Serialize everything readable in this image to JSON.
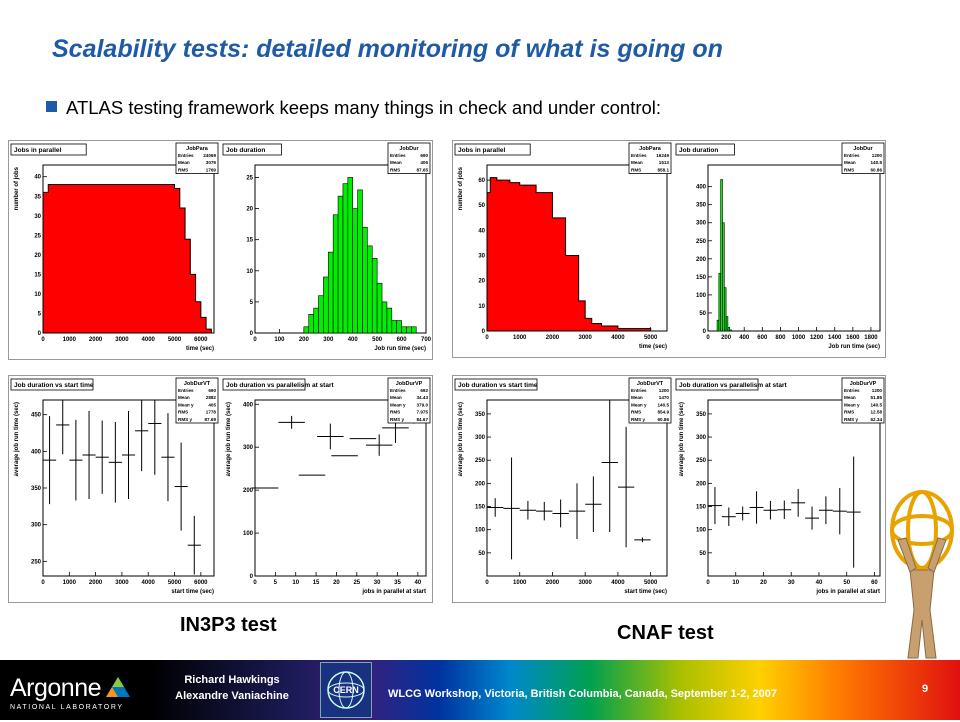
{
  "slide": {
    "title": "Scalability tests: detailed monitoring of what is going on",
    "bullet": "ATLAS testing framework keeps many things in check and under control:",
    "caption_left": "IN3P3 test",
    "caption_right": "CNAF test"
  },
  "footer": {
    "logo_text": "Argonne",
    "logo_sub": "NATIONAL LABORATORY",
    "author1": "Richard Hawkings",
    "author2": "Alexandre Vaniachine",
    "cern_text": "CERN",
    "workshop": "WLCG Workshop, Victoria, British Columbia, Canada, September 1-2, 2007",
    "page": "9"
  },
  "colors": {
    "title": "#1f5aa6",
    "red_fill": "#ff0000",
    "green_fill": "#00ee00"
  },
  "chart_data": [
    {
      "type": "area",
      "title": "Jobs in parallel",
      "stats_name": "JobPara",
      "stats": [
        [
          "Entries",
          "24069"
        ],
        [
          "Mean",
          "3079"
        ],
        [
          "RMS",
          "1769"
        ]
      ],
      "xlabel": "time (sec)",
      "ylabel": "number of jobs",
      "xlim": [
        0,
        6500
      ],
      "ylim": [
        0,
        43
      ],
      "xticks": [
        0,
        1000,
        2000,
        3000,
        4000,
        5000,
        6000
      ],
      "yticks": [
        0,
        5,
        10,
        15,
        20,
        25,
        30,
        35,
        40
      ],
      "x": [
        0,
        200,
        500,
        1000,
        2000,
        3000,
        4000,
        4500,
        5000,
        5200,
        5400,
        5600,
        5800,
        6000,
        6200,
        6400
      ],
      "y": [
        36,
        38,
        38,
        38,
        38,
        38,
        38,
        38,
        37,
        32,
        24,
        15,
        8,
        4,
        1,
        0
      ],
      "fill": "#ff0000"
    },
    {
      "type": "bar",
      "title": "Job duration",
      "stats_name": "JobDur",
      "stats": [
        [
          "Entries",
          "690"
        ],
        [
          "Mean",
          "406"
        ],
        [
          "RMS",
          "87.65"
        ]
      ],
      "xlabel": "Job run time (sec)",
      "ylabel": "",
      "xlim": [
        0,
        700
      ],
      "ylim": [
        0,
        27
      ],
      "xticks": [
        0,
        100,
        200,
        300,
        400,
        500,
        600,
        700
      ],
      "yticks": [
        0,
        5,
        10,
        15,
        20,
        25
      ],
      "x": [
        210,
        230,
        250,
        270,
        290,
        310,
        330,
        350,
        370,
        390,
        410,
        430,
        450,
        470,
        490,
        510,
        530,
        550,
        570,
        590,
        610,
        630,
        650
      ],
      "y": [
        1,
        3,
        4,
        6,
        9,
        13,
        19,
        22,
        24,
        25,
        20,
        23,
        17,
        14,
        12,
        8,
        5,
        4,
        2,
        2,
        1,
        1,
        1
      ],
      "fill": "#00ee00"
    },
    {
      "type": "area",
      "title": "Jobs in parallel",
      "stats_name": "JobPara",
      "stats": [
        [
          "Entries",
          "16249"
        ],
        [
          "Mean",
          "1513"
        ],
        [
          "RMS",
          "858.1"
        ]
      ],
      "xlabel": "time (sec)",
      "ylabel": "number of jobs",
      "xlim": [
        0,
        5500
      ],
      "ylim": [
        0,
        66
      ],
      "xticks": [
        0,
        1000,
        2000,
        3000,
        4000,
        5000
      ],
      "yticks": [
        0,
        10,
        20,
        30,
        40,
        50,
        60
      ],
      "x": [
        0,
        100,
        300,
        700,
        1000,
        1500,
        2000,
        2400,
        2800,
        3000,
        3200,
        3500,
        4000,
        4500,
        5000
      ],
      "y": [
        55,
        61,
        60,
        59,
        58,
        55,
        45,
        30,
        12,
        5,
        3,
        2,
        1,
        1,
        0
      ],
      "fill": "#ff0000"
    },
    {
      "type": "bar",
      "title": "Job duration",
      "stats_name": "JobDur",
      "stats": [
        [
          "Entries",
          "1200"
        ],
        [
          "Mean",
          "140.5"
        ],
        [
          "RMS",
          "60.86"
        ]
      ],
      "xlabel": "Job run time (sec)",
      "ylabel": "",
      "xlim": [
        0,
        1900
      ],
      "ylim": [
        0,
        460
      ],
      "xticks": [
        0,
        200,
        400,
        600,
        800,
        1000,
        1200,
        1400,
        1600,
        1800
      ],
      "yticks": [
        0,
        50,
        100,
        150,
        200,
        250,
        300,
        350,
        400
      ],
      "x": [
        110,
        130,
        150,
        170,
        190,
        210,
        230,
        250
      ],
      "y": [
        30,
        160,
        420,
        300,
        120,
        40,
        10,
        3
      ],
      "fill": "#00ee00"
    },
    {
      "type": "scatter",
      "title": "Job duration vs start time",
      "stats_name": "JobDurVT",
      "stats": [
        [
          "Entries",
          "690"
        ],
        [
          "Mean",
          "2882"
        ],
        [
          "Mean y",
          "405"
        ],
        [
          "RMS",
          "1778"
        ],
        [
          "RMS y",
          "87.69"
        ]
      ],
      "xlabel": "start time (sec)",
      "ylabel": "average job run time (sec)",
      "xlim": [
        0,
        6500
      ],
      "ylim": [
        230,
        470
      ],
      "xticks": [
        0,
        1000,
        2000,
        3000,
        4000,
        5000,
        6000
      ],
      "yticks": [
        250,
        300,
        350,
        400,
        450
      ],
      "x": [
        250,
        750,
        1250,
        1750,
        2250,
        2750,
        3250,
        3750,
        4250,
        4750,
        5250,
        5750
      ],
      "y": [
        388,
        436,
        388,
        395,
        392,
        385,
        395,
        428,
        438,
        392,
        352,
        272
      ],
      "yerr": [
        60,
        40,
        55,
        60,
        50,
        55,
        60,
        55,
        70,
        60,
        60,
        40
      ]
    },
    {
      "type": "scatter",
      "title": "Job duration vs parallelism at start",
      "stats_name": "JobDurVP",
      "stats": [
        [
          "Entries",
          "692"
        ],
        [
          "Mean",
          "34.43"
        ],
        [
          "Mean y",
          "379.0"
        ],
        [
          "RMS",
          "7.975"
        ],
        [
          "RMS y",
          "84.67"
        ]
      ],
      "xlabel": "jobs in parallel at start",
      "ylabel": "average job run time (sec)",
      "xlim": [
        0,
        42
      ],
      "ylim": [
        0,
        410
      ],
      "xticks": [
        0,
        5,
        10,
        15,
        20,
        25,
        30,
        35,
        40
      ],
      "yticks": [
        0,
        100,
        200,
        300,
        400
      ],
      "x": [
        2.5,
        9,
        14,
        18.5,
        22,
        26.5,
        30.5,
        34.5,
        39
      ],
      "y": [
        205,
        358,
        235,
        325,
        280,
        320,
        305,
        345,
        395
      ],
      "yerr": [
        0,
        15,
        0,
        30,
        0,
        0,
        25,
        35,
        40
      ]
    },
    {
      "type": "scatter",
      "title": "Job duration vs start time",
      "stats_name": "JobDurVT",
      "stats": [
        [
          "Entries",
          "1200"
        ],
        [
          "Mean",
          "1470"
        ],
        [
          "Mean y",
          "140.5"
        ],
        [
          "RMS",
          "854.9"
        ],
        [
          "RMS y",
          "60.86"
        ]
      ],
      "xlabel": "start time (sec)",
      "ylabel": "average job run time (sec)",
      "xlim": [
        0,
        5500
      ],
      "ylim": [
        0,
        380
      ],
      "xticks": [
        0,
        1000,
        2000,
        3000,
        4000,
        5000
      ],
      "yticks": [
        50,
        100,
        150,
        200,
        250,
        300,
        350
      ],
      "x": [
        250,
        750,
        1250,
        1750,
        2250,
        2750,
        3250,
        3750,
        4250,
        4750
      ],
      "y": [
        148,
        146,
        142,
        140,
        135,
        140,
        155,
        245,
        192,
        78
      ],
      "yerr": [
        20,
        110,
        20,
        20,
        30,
        60,
        60,
        150,
        130,
        5
      ]
    },
    {
      "type": "scatter",
      "title": "Job duration vs parallelism at start",
      "stats_name": "JobDurVP",
      "stats": [
        [
          "Entries",
          "1200"
        ],
        [
          "Mean",
          "51.85"
        ],
        [
          "Mean y",
          "140.5"
        ],
        [
          "RMS",
          "12.58"
        ],
        [
          "RMS y",
          "62.34"
        ]
      ],
      "xlabel": "jobs in parallel at start",
      "ylabel": "average job run time (sec)",
      "xlim": [
        0,
        62
      ],
      "ylim": [
        0,
        380
      ],
      "xticks": [
        0,
        10,
        20,
        30,
        40,
        50,
        60
      ],
      "yticks": [
        50,
        100,
        150,
        200,
        250,
        300,
        350
      ],
      "x": [
        2.5,
        7.5,
        12.5,
        17.5,
        22.5,
        27.5,
        32.5,
        37.5,
        42.5,
        47.5,
        52.5
      ],
      "y": [
        152,
        128,
        135,
        148,
        142,
        143,
        158,
        125,
        142,
        140,
        138
      ],
      "yerr": [
        40,
        20,
        15,
        35,
        20,
        20,
        30,
        25,
        30,
        50,
        120
      ]
    }
  ]
}
